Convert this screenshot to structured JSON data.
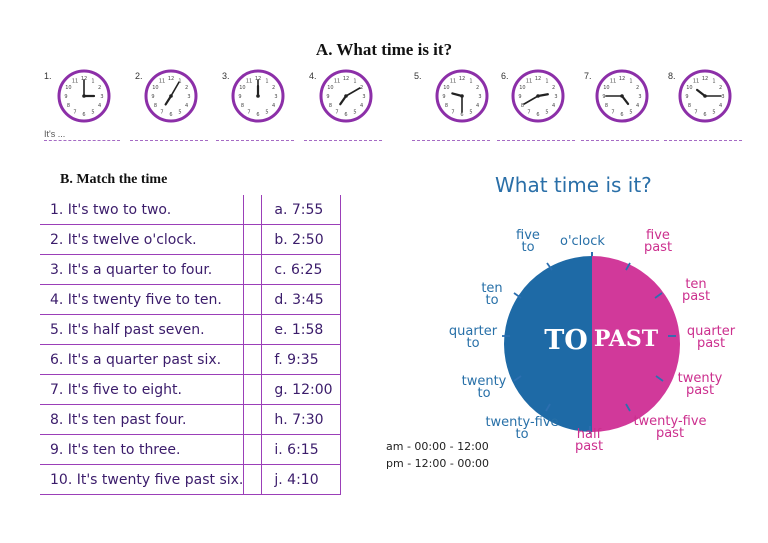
{
  "section_a": {
    "title": "A. What time is it?",
    "its_label": "It's ...",
    "clocks": [
      {
        "number": "1.",
        "hour": 3,
        "minute": 0
      },
      {
        "number": "2.",
        "hour": 7,
        "minute": 5
      },
      {
        "number": "3.",
        "hour": 12,
        "minute": 0
      },
      {
        "number": "4.",
        "hour": 7,
        "minute": 10
      },
      {
        "number": "5.",
        "hour": 9,
        "minute": 30
      },
      {
        "number": "6.",
        "hour": 2,
        "minute": 40
      },
      {
        "number": "7.",
        "hour": 4,
        "minute": 45
      },
      {
        "number": "8.",
        "hour": 10,
        "minute": 15
      }
    ]
  },
  "section_b": {
    "title": "B. Match the time",
    "left": [
      "1. It's two to two.",
      "2. It's twelve o'clock.",
      "3. It's a quarter to four.",
      "4. It's twenty five to ten.",
      "5. It's half past seven.",
      "6. It's a quarter past six.",
      "7. It's five to eight.",
      "8. It's ten past four.",
      "9. It's ten to three.",
      "10. It's twenty five past six."
    ],
    "right": [
      "a. 7:55",
      "b. 2:50",
      "c. 6:25",
      "d. 3:45",
      "e. 1:58",
      "f. 9:35",
      "g. 12:00",
      "h. 7:30",
      "i. 6:15",
      "j. 4:10"
    ]
  },
  "panel": {
    "title": "What time is it?",
    "to_word": "TO",
    "past_word": "PAST",
    "labels": {
      "oclock": "o'clock",
      "five_to_1": "five",
      "five_to_2": "to",
      "five_past_1": "five",
      "five_past_2": "past",
      "ten_to_1": "ten",
      "ten_to_2": "to",
      "ten_past_1": "ten",
      "ten_past_2": "past",
      "quarter_to_1": "quarter",
      "quarter_to_2": "to",
      "quarter_past_1": "quarter",
      "quarter_past_2": "past",
      "twenty_to_1": "twenty",
      "twenty_to_2": "to",
      "twenty_past_1": "twenty",
      "twenty_past_2": "past",
      "twentyfive_to_1": "twenty-five",
      "twentyfive_to_2": "to",
      "twentyfive_past_1": "twenty-five",
      "twentyfive_past_2": "past",
      "half_1": "half",
      "half_2": "past"
    },
    "am_note": "am - 00:00 - 12:00",
    "pm_note": "pm - 12:00 - 00:00",
    "colors": {
      "to": "#1e6aa6",
      "past": "#d1399a"
    }
  }
}
